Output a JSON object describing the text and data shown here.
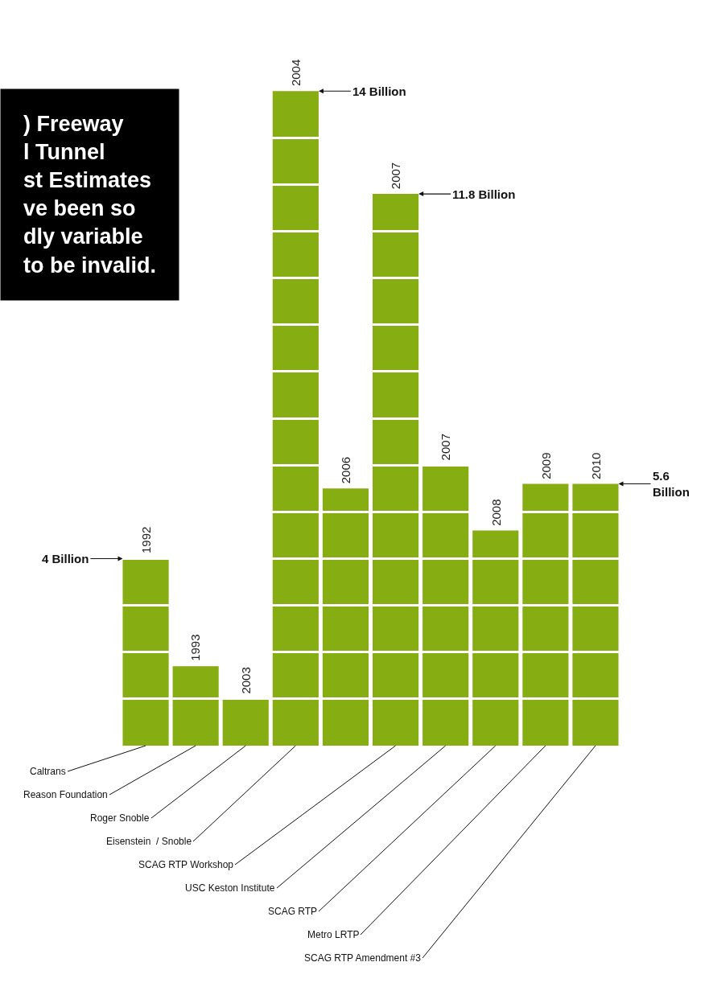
{
  "chart_data": {
    "type": "bar",
    "title": ") Freeway\nl Tunnel\nst Estimates\nve been so\ndly variable\nto be invalid.",
    "categories": [
      "1992",
      "1993",
      "2003",
      "2004",
      "2006",
      "2007",
      "2007",
      "2008",
      "2009",
      "2010"
    ],
    "values": [
      4,
      1.7,
      1,
      14,
      5.5,
      11.8,
      6,
      4.6,
      5.6,
      5.6
    ],
    "value_labels": [
      "4 Billion",
      null,
      null,
      "14 Billion",
      null,
      "11.8 Billion",
      null,
      null,
      null,
      "5.6\nBillion"
    ],
    "color": "#86ad12",
    "yticks": [
      {
        "value": 1,
        "label": null
      },
      {
        "value": 2,
        "label": null
      },
      {
        "value": 3,
        "label": null
      },
      {
        "value": 4,
        "label": null
      },
      {
        "value": 5,
        "label": null
      },
      {
        "value": 6,
        "label": null
      },
      {
        "value": 7,
        "label": null
      },
      {
        "value": 8,
        "label": null
      },
      {
        "value": 9,
        "label": null
      },
      {
        "value": 10,
        "label": null
      },
      {
        "value": 11,
        "label": null
      },
      {
        "value": 12,
        "label": null
      },
      {
        "value": 13,
        "label": null
      }
    ],
    "annotations": [
      "Caltrans",
      "Reason Foundation",
      "Roger Snoble",
      "Eisenstein  / Snoble",
      "SCAG RTP Workshop",
      "USC Keston Institute",
      "SCAG RTP",
      "Metro LRTP",
      "SCAG RTP Amendment #3"
    ]
  }
}
